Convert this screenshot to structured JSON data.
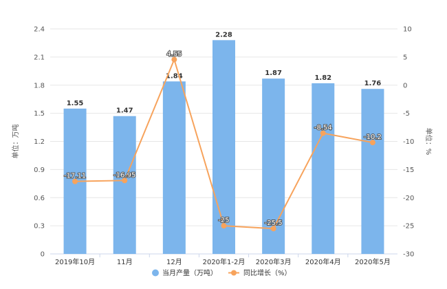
{
  "chart_data": {
    "type": "bar",
    "categories": [
      "2019年10月",
      "11月",
      "12月",
      "2020年1-2月",
      "2020年3月",
      "2020年4月",
      "2020年5月"
    ],
    "series": [
      {
        "name": "当月产量（万吨）",
        "type": "bar",
        "axis": "left",
        "color": "#7cb5ec",
        "values": [
          1.55,
          1.47,
          1.84,
          2.28,
          1.87,
          1.82,
          1.76
        ],
        "labels": [
          "1.55",
          "1.47",
          "1.84",
          "2.28",
          "1.87",
          "1.82",
          "1.76"
        ]
      },
      {
        "name": "同比增长（%）",
        "type": "line",
        "axis": "right",
        "color": "#f7a35c",
        "values": [
          -17.11,
          -16.95,
          4.55,
          -25,
          -25.5,
          -8.54,
          -10.2
        ],
        "labels": [
          "-17.11",
          "-16.95",
          "4.55",
          "-25",
          "-25.5",
          "-8.54",
          "-10.2"
        ]
      }
    ],
    "left_axis": {
      "label": "单位：万吨",
      "min": 0,
      "max": 2.4,
      "ticks": [
        "0",
        "0.3",
        "0.6",
        "0.9",
        "1.2",
        "1.5",
        "1.8",
        "2.1",
        "2.4"
      ]
    },
    "right_axis": {
      "label": "单位：%",
      "min": -30,
      "max": 10,
      "ticks": [
        "-30",
        "-25",
        "-20",
        "-15",
        "-10",
        "-5",
        "0",
        "5",
        "10"
      ]
    },
    "grid": true,
    "legend": "bottom"
  }
}
